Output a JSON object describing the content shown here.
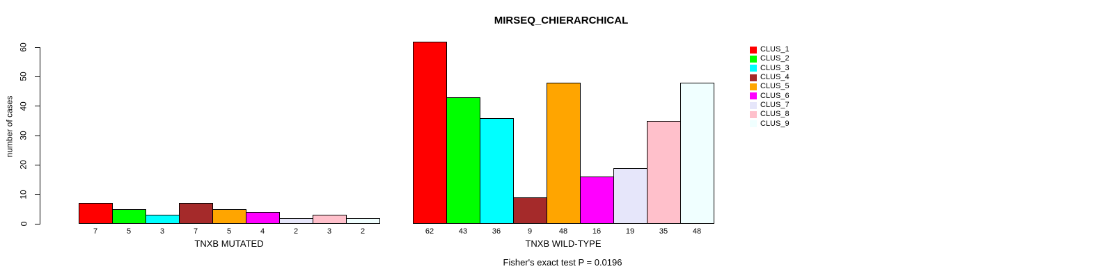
{
  "chart_data": {
    "type": "bar",
    "title": "MIRSEQ_CHIERARCHICAL",
    "ylabel": "number of cases",
    "ylim": [
      0,
      60
    ],
    "yticks": [
      0,
      10,
      20,
      30,
      40,
      50,
      60
    ],
    "grid": false,
    "legend_position": "right",
    "annotation": "Fisher's exact test P = 0.0196",
    "clusters": [
      "CLUS_1",
      "CLUS_2",
      "CLUS_3",
      "CLUS_4",
      "CLUS_5",
      "CLUS_6",
      "CLUS_7",
      "CLUS_8",
      "CLUS_9"
    ],
    "colors": [
      "#FF0000",
      "#00FF00",
      "#00FFFF",
      "#A52A2A",
      "#FFA500",
      "#FF00FF",
      "#E6E6FA",
      "#FFC0CB",
      "#F0FFFF"
    ],
    "groups": [
      {
        "label": "TNXB MUTATED",
        "values": [
          7,
          5,
          3,
          7,
          5,
          4,
          2,
          3,
          2
        ]
      },
      {
        "label": "TNXB WILD-TYPE",
        "values": [
          62,
          43,
          36,
          9,
          48,
          16,
          19,
          35,
          48
        ]
      }
    ]
  }
}
